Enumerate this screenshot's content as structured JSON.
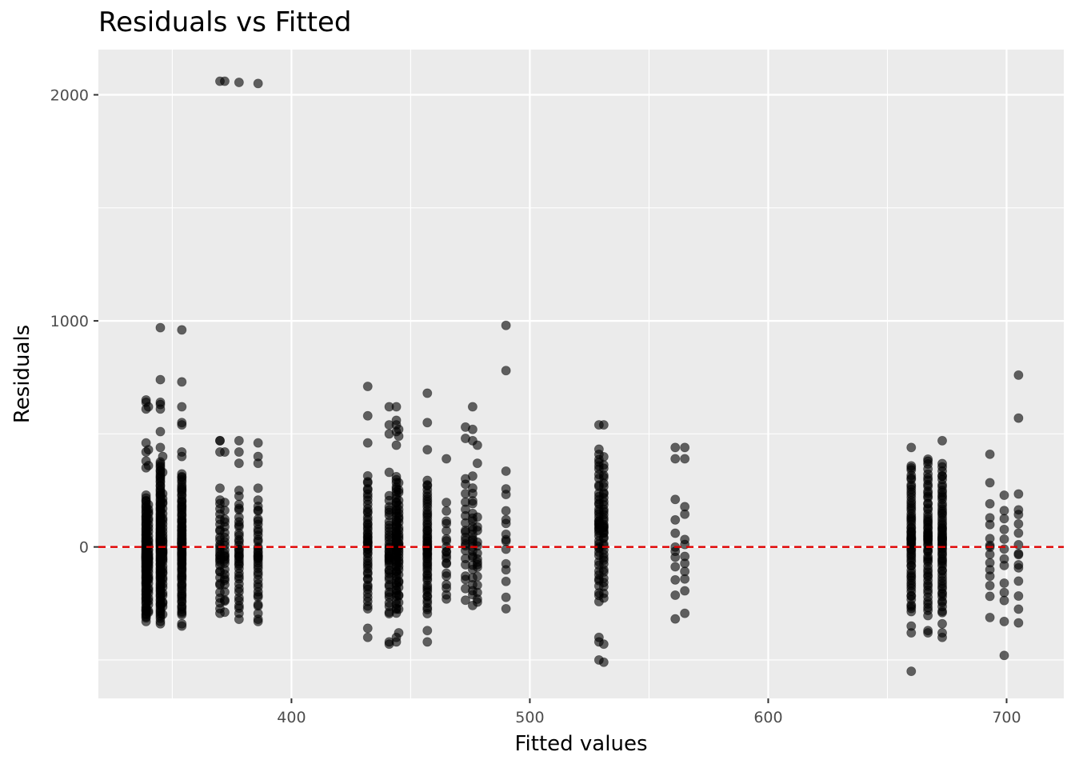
{
  "chart_data": {
    "type": "scatter",
    "title": "Residuals vs Fitted",
    "xlabel": "Fitted values",
    "ylabel": "Residuals",
    "xlim": [
      319,
      724
    ],
    "ylim": [
      -670,
      2200
    ],
    "x_ticks": [
      400,
      500,
      600,
      700
    ],
    "y_ticks": [
      0,
      1000,
      2000
    ],
    "x_tick_labels": [
      "400",
      "500",
      "600",
      "700"
    ],
    "y_tick_labels": [
      "0",
      "1000",
      "2000"
    ],
    "grid": true,
    "reference_line": {
      "y": 0,
      "color": "#e00000",
      "style": "dashed"
    },
    "point_color": "#000000",
    "point_opacity": 0.6,
    "background": "#ebebeb",
    "groups": [
      {
        "x": 339,
        "n": 85,
        "low": -320,
        "high": 230,
        "extra": [
          650,
          640,
          610,
          460,
          420,
          380,
          350,
          -280,
          -300,
          -330
        ]
      },
      {
        "x": 340,
        "n": 40,
        "low": -300,
        "high": 200,
        "extra": [
          620,
          430,
          360
        ]
      },
      {
        "x": 345,
        "n": 110,
        "low": -320,
        "high": 380,
        "extra": [
          970,
          740,
          640,
          630,
          610,
          510,
          440,
          -330,
          -340
        ]
      },
      {
        "x": 346,
        "n": 40,
        "low": -300,
        "high": 250,
        "extra": [
          400,
          330
        ]
      },
      {
        "x": 354,
        "n": 90,
        "low": -300,
        "high": 330,
        "extra": [
          960,
          730,
          620,
          550,
          540,
          420,
          400,
          -300,
          -340,
          -350
        ]
      },
      {
        "x": 370,
        "n": 30,
        "low": -300,
        "high": 230,
        "extra": [
          2060,
          470,
          470,
          420,
          260
        ]
      },
      {
        "x": 372,
        "n": 25,
        "low": -290,
        "high": 200,
        "extra": [
          2060,
          420
        ]
      },
      {
        "x": 378,
        "n": 35,
        "low": -310,
        "high": 230,
        "extra": [
          2055,
          470,
          420,
          370,
          250,
          -320
        ]
      },
      {
        "x": 386,
        "n": 35,
        "low": -300,
        "high": 220,
        "extra": [
          2050,
          460,
          400,
          370,
          260,
          -320,
          -330
        ]
      },
      {
        "x": 432,
        "n": 50,
        "low": -280,
        "high": 320,
        "extra": [
          710,
          580,
          460,
          -360,
          -400
        ]
      },
      {
        "x": 441,
        "n": 40,
        "low": -310,
        "high": 230,
        "extra": [
          620,
          540,
          500,
          330,
          -420,
          -430
        ]
      },
      {
        "x": 444,
        "n": 60,
        "low": -300,
        "high": 320,
        "extra": [
          620,
          560,
          540,
          510,
          450,
          -400,
          -420
        ]
      },
      {
        "x": 445,
        "n": 35,
        "low": -280,
        "high": 290,
        "extra": [
          520,
          490,
          -380
        ]
      },
      {
        "x": 457,
        "n": 60,
        "low": -300,
        "high": 300,
        "extra": [
          680,
          550,
          430,
          -370,
          -420
        ]
      },
      {
        "x": 465,
        "n": 20,
        "low": -260,
        "high": 200,
        "extra": [
          390
        ]
      },
      {
        "x": 473,
        "n": 20,
        "low": -240,
        "high": 320,
        "extra": [
          530,
          480
        ]
      },
      {
        "x": 476,
        "n": 25,
        "low": -260,
        "high": 320,
        "extra": [
          520,
          470,
          620
        ]
      },
      {
        "x": 478,
        "n": 15,
        "low": -280,
        "high": 150,
        "extra": [
          450,
          370
        ]
      },
      {
        "x": 490,
        "n": 15,
        "low": -290,
        "high": 360,
        "extra": [
          980,
          780
        ]
      },
      {
        "x": 529,
        "n": 45,
        "low": -250,
        "high": 450,
        "extra": [
          540,
          -400,
          -420,
          -500
        ]
      },
      {
        "x": 531,
        "n": 40,
        "low": -230,
        "high": 400,
        "extra": [
          540,
          -510,
          -430
        ]
      },
      {
        "x": 561,
        "n": 10,
        "low": -330,
        "high": 240,
        "extra": [
          440,
          390
        ]
      },
      {
        "x": 565,
        "n": 10,
        "low": -340,
        "high": 240,
        "extra": [
          440,
          390
        ]
      },
      {
        "x": 660,
        "n": 65,
        "low": -300,
        "high": 370,
        "extra": [
          440,
          -350,
          -380,
          -550
        ]
      },
      {
        "x": 667,
        "n": 60,
        "low": -310,
        "high": 400,
        "extra": [
          -370,
          -380
        ]
      },
      {
        "x": 673,
        "n": 65,
        "low": -300,
        "high": 370,
        "extra": [
          470,
          -400,
          -380,
          -340
        ]
      },
      {
        "x": 693,
        "n": 14,
        "low": -330,
        "high": 290,
        "extra": [
          410
        ]
      },
      {
        "x": 699,
        "n": 12,
        "low": -370,
        "high": 300,
        "extra": [
          -480
        ]
      },
      {
        "x": 705,
        "n": 14,
        "low": -340,
        "high": 280,
        "extra": [
          760,
          570
        ]
      }
    ]
  }
}
